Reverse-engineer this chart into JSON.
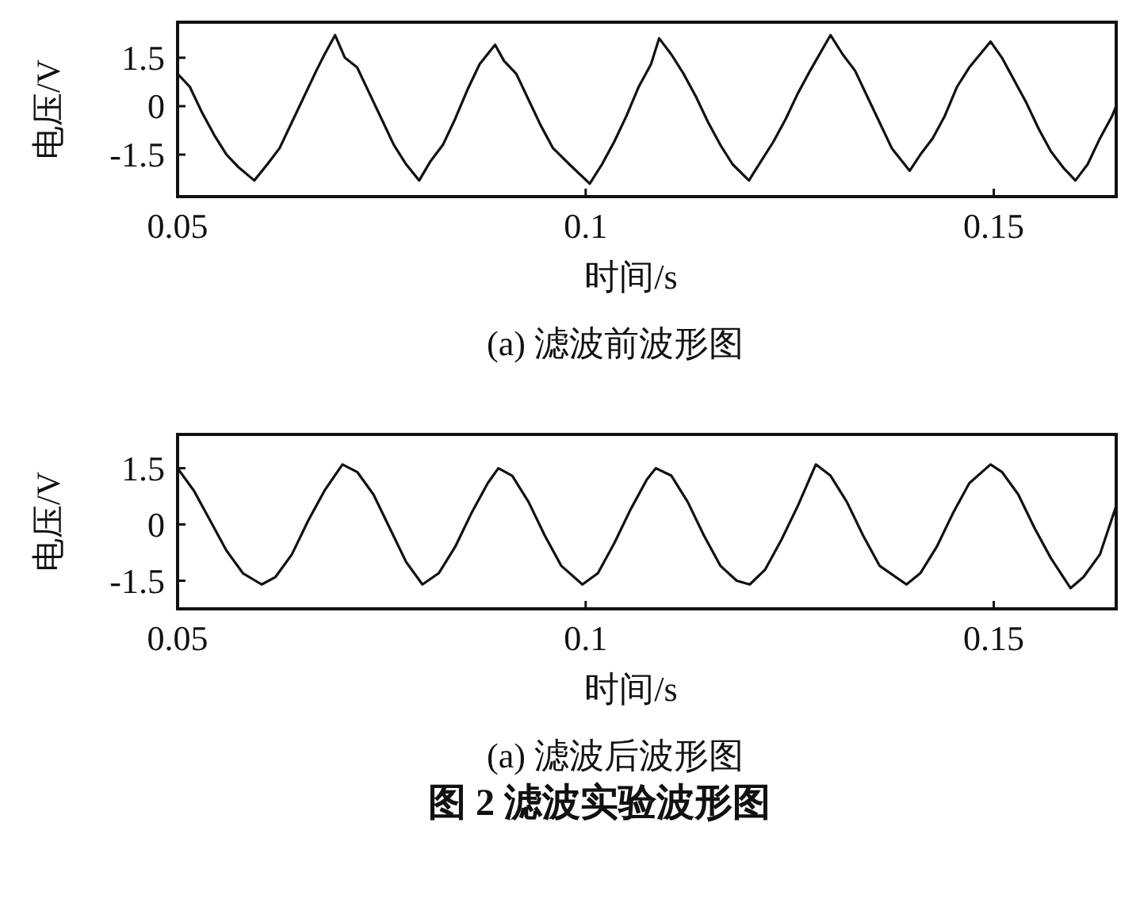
{
  "chart_data": [
    {
      "type": "line",
      "title": "(a) 滤波前波形图",
      "xlabel": "时间/s",
      "ylabel": "电压/V",
      "color": "#111111",
      "xlim": [
        0.05,
        0.165
      ],
      "ylim": [
        -2.8,
        2.6
      ],
      "xticks": [
        0.05,
        0.1,
        0.15
      ],
      "yticks": [
        1.5,
        0,
        -1.5
      ],
      "x": [
        0.05,
        0.0515,
        0.053,
        0.0545,
        0.056,
        0.0575,
        0.0594,
        0.061,
        0.0625,
        0.064,
        0.0655,
        0.067,
        0.068,
        0.0693,
        0.0705,
        0.072,
        0.0735,
        0.075,
        0.0765,
        0.078,
        0.0796,
        0.081,
        0.0825,
        0.084,
        0.0855,
        0.087,
        0.0889,
        0.09,
        0.0915,
        0.093,
        0.0945,
        0.096,
        0.098,
        0.1005,
        0.102,
        0.1035,
        0.105,
        0.1065,
        0.108,
        0.109,
        0.1105,
        0.112,
        0.1135,
        0.115,
        0.1165,
        0.118,
        0.12,
        0.1215,
        0.123,
        0.1245,
        0.126,
        0.1275,
        0.13,
        0.1315,
        0.133,
        0.1345,
        0.136,
        0.1375,
        0.1397,
        0.141,
        0.1425,
        0.144,
        0.1455,
        0.147,
        0.1496,
        0.151,
        0.1525,
        0.154,
        0.1555,
        0.157,
        0.1585,
        0.16,
        0.1615,
        0.163,
        0.1645,
        0.165
      ],
      "values": [
        1.0,
        0.6,
        -0.2,
        -0.9,
        -1.5,
        -1.9,
        -2.3,
        -1.8,
        -1.3,
        -0.5,
        0.3,
        1.1,
        1.6,
        2.2,
        1.5,
        1.2,
        0.4,
        -0.4,
        -1.2,
        -1.8,
        -2.3,
        -1.7,
        -1.2,
        -0.4,
        0.5,
        1.3,
        1.9,
        1.4,
        1.0,
        0.2,
        -0.6,
        -1.3,
        -1.8,
        -2.4,
        -1.8,
        -1.1,
        -0.3,
        0.6,
        1.3,
        2.1,
        1.6,
        1.0,
        0.3,
        -0.5,
        -1.2,
        -1.8,
        -2.3,
        -1.7,
        -1.1,
        -0.4,
        0.4,
        1.1,
        2.2,
        1.6,
        1.1,
        0.3,
        -0.5,
        -1.3,
        -2.0,
        -1.5,
        -1.0,
        -0.3,
        0.6,
        1.2,
        2.0,
        1.5,
        0.8,
        0.1,
        -0.7,
        -1.4,
        -1.9,
        -2.3,
        -1.8,
        -1.0,
        -0.3,
        0.0
      ]
    },
    {
      "type": "line",
      "title": "(a) 滤波后波形图",
      "xlabel": "时间/s",
      "ylabel": "电压/V",
      "color": "#111111",
      "xlim": [
        0.05,
        0.165
      ],
      "ylim": [
        -2.25,
        2.4
      ],
      "xticks": [
        0.05,
        0.1,
        0.15
      ],
      "yticks": [
        1.5,
        0,
        -1.5
      ],
      "annotations": [
        "图 2  滤波实验波形图"
      ],
      "x": [
        0.05,
        0.052,
        0.054,
        0.056,
        0.058,
        0.0603,
        0.062,
        0.064,
        0.066,
        0.068,
        0.0702,
        0.072,
        0.074,
        0.076,
        0.078,
        0.08,
        0.082,
        0.084,
        0.086,
        0.088,
        0.0893,
        0.091,
        0.093,
        0.095,
        0.097,
        0.0996,
        0.1015,
        0.1035,
        0.1055,
        0.1075,
        0.1086,
        0.1105,
        0.1125,
        0.1145,
        0.1165,
        0.1185,
        0.1201,
        0.122,
        0.124,
        0.126,
        0.1282,
        0.13,
        0.132,
        0.134,
        0.136,
        0.1393,
        0.141,
        0.143,
        0.145,
        0.147,
        0.1496,
        0.151,
        0.153,
        0.155,
        0.157,
        0.1594,
        0.161,
        0.163,
        0.165
      ],
      "values": [
        1.5,
        0.9,
        0.1,
        -0.7,
        -1.3,
        -1.6,
        -1.4,
        -0.8,
        0.1,
        0.9,
        1.6,
        1.4,
        0.8,
        -0.1,
        -1.0,
        -1.6,
        -1.3,
        -0.6,
        0.3,
        1.1,
        1.5,
        1.3,
        0.6,
        -0.3,
        -1.1,
        -1.6,
        -1.3,
        -0.5,
        0.4,
        1.2,
        1.5,
        1.3,
        0.6,
        -0.3,
        -1.1,
        -1.5,
        -1.6,
        -1.2,
        -0.4,
        0.5,
        1.6,
        1.3,
        0.6,
        -0.3,
        -1.1,
        -1.6,
        -1.3,
        -0.6,
        0.3,
        1.1,
        1.6,
        1.4,
        0.8,
        -0.1,
        -0.9,
        -1.7,
        -1.4,
        -0.8,
        0.5
      ]
    }
  ]
}
